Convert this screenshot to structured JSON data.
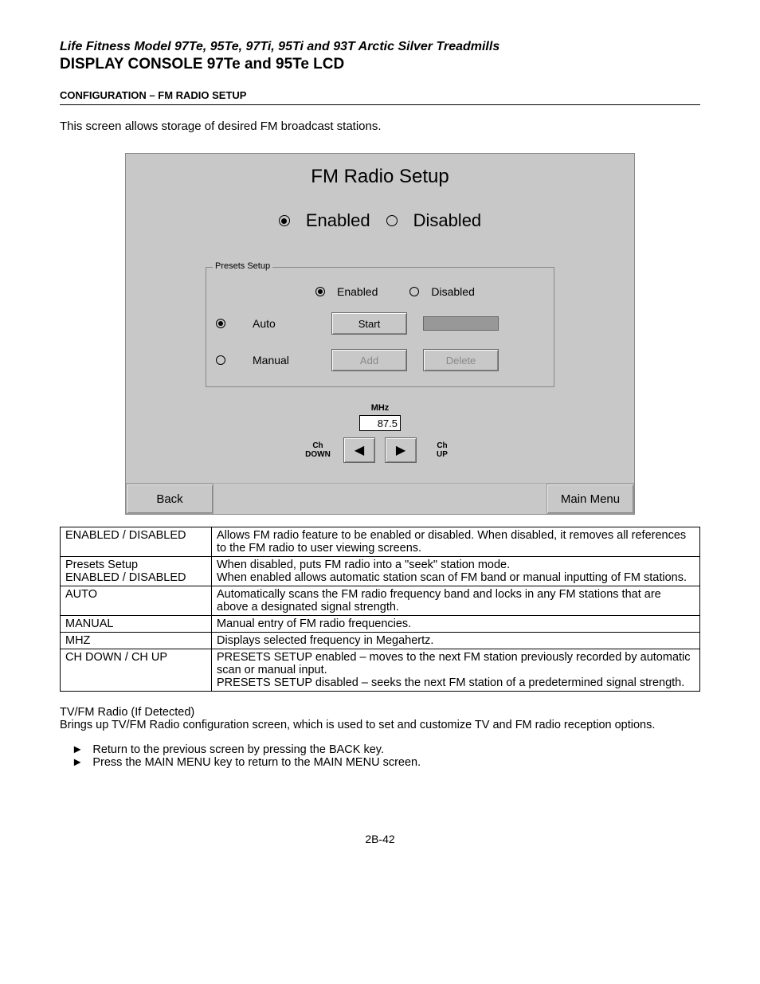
{
  "header": {
    "title_line": "Life Fitness Model 97Te, 95Te, 97Ti, 95Ti and 93T Arctic Silver Treadmills",
    "subtitle": "DISPLAY CONSOLE 97Te and 95Te LCD",
    "section": "CONFIGURATION – FM RADIO SETUP",
    "intro": "This screen allows storage of desired FM broadcast stations."
  },
  "lcd": {
    "title": "FM Radio Setup",
    "top_enabled": "Enabled",
    "top_disabled": "Disabled",
    "fieldset_legend": "Presets Setup",
    "presets_enabled": "Enabled",
    "presets_disabled": "Disabled",
    "mode_auto": "Auto",
    "mode_manual": "Manual",
    "start_btn": "Start",
    "add_btn": "Add",
    "delete_btn": "Delete",
    "mhz_label": "MHz",
    "mhz_value": "87.5",
    "ch_down": "Ch DOWN",
    "ch_up": "Ch UP",
    "back": "Back",
    "main_menu": "Main Menu",
    "arrow_left": "◀",
    "arrow_right": "▶"
  },
  "table": {
    "rows": [
      {
        "k": "ENABLED / DISABLED",
        "v": "Allows FM radio feature to be enabled or disabled. When disabled, it removes all references to the FM radio to user viewing screens."
      },
      {
        "k": "Presets Setup ENABLED / DISABLED",
        "v": "When disabled, puts FM radio into a \"seek\" station mode.\nWhen enabled allows automatic station scan of FM band or manual inputting of FM stations."
      },
      {
        "k": "AUTO",
        "v": "Automatically scans the FM radio frequency band and locks in any FM stations that are above a designated signal strength."
      },
      {
        "k": "MANUAL",
        "v": "Manual entry of FM radio frequencies."
      },
      {
        "k": "MHZ",
        "v": "Displays selected frequency in Megahertz."
      },
      {
        "k": "CH DOWN / CH UP",
        "v": "PRESETS SETUP enabled – moves to the next FM station previously recorded by automatic scan or manual input.\nPRESETS SETUP disabled – seeks the next FM station of a predetermined signal strength."
      }
    ]
  },
  "footer": {
    "p1": "TV/FM Radio (If Detected)",
    "p2": "Brings up TV/FM Radio configuration screen, which is used to set and customize TV and FM radio reception options.",
    "b1": "Return to the previous screen by pressing the BACK key.",
    "b2": "Press the MAIN MENU key to return to the MAIN MENU screen.",
    "bullet": "►",
    "page": "2B-42"
  }
}
